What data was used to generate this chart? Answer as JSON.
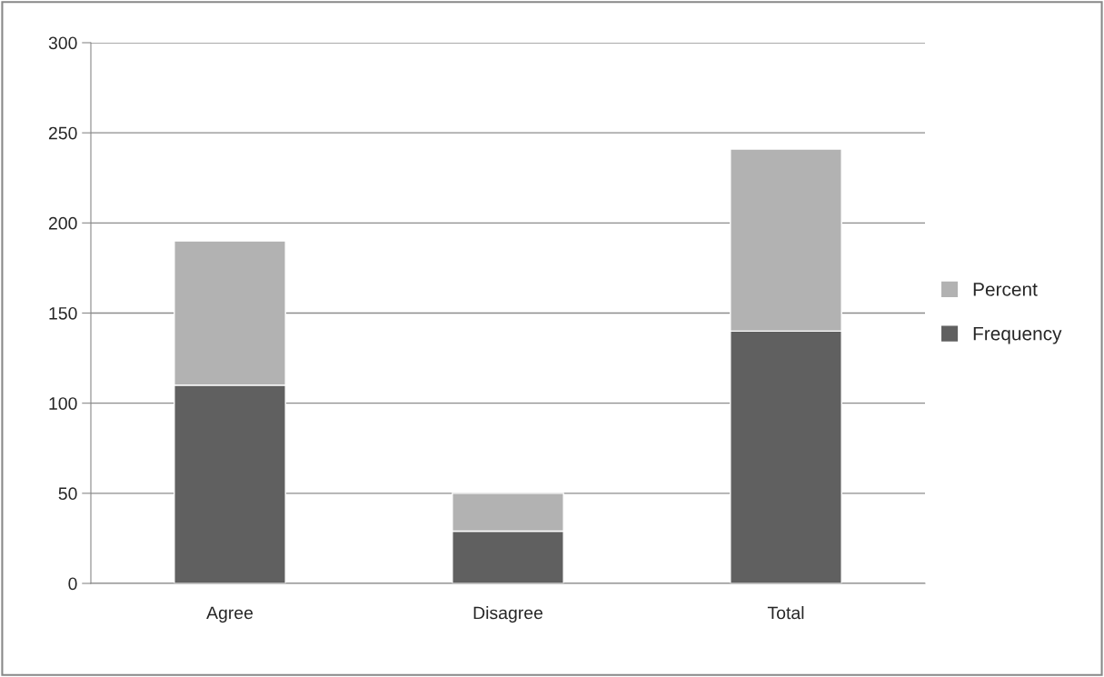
{
  "chart_data": {
    "type": "bar",
    "stacked": true,
    "categories": [
      "Agree",
      "Disagree",
      "Total"
    ],
    "series": [
      {
        "name": "Frequency",
        "color": "#606060",
        "values": [
          110,
          29,
          140
        ]
      },
      {
        "name": "Percent",
        "color": "#b2b2b2",
        "values": [
          80,
          21,
          101
        ]
      }
    ],
    "ylim": [
      0,
      300
    ],
    "yticks": [
      0,
      50,
      100,
      150,
      200,
      250,
      300
    ],
    "grid": "y",
    "legend": "right"
  }
}
